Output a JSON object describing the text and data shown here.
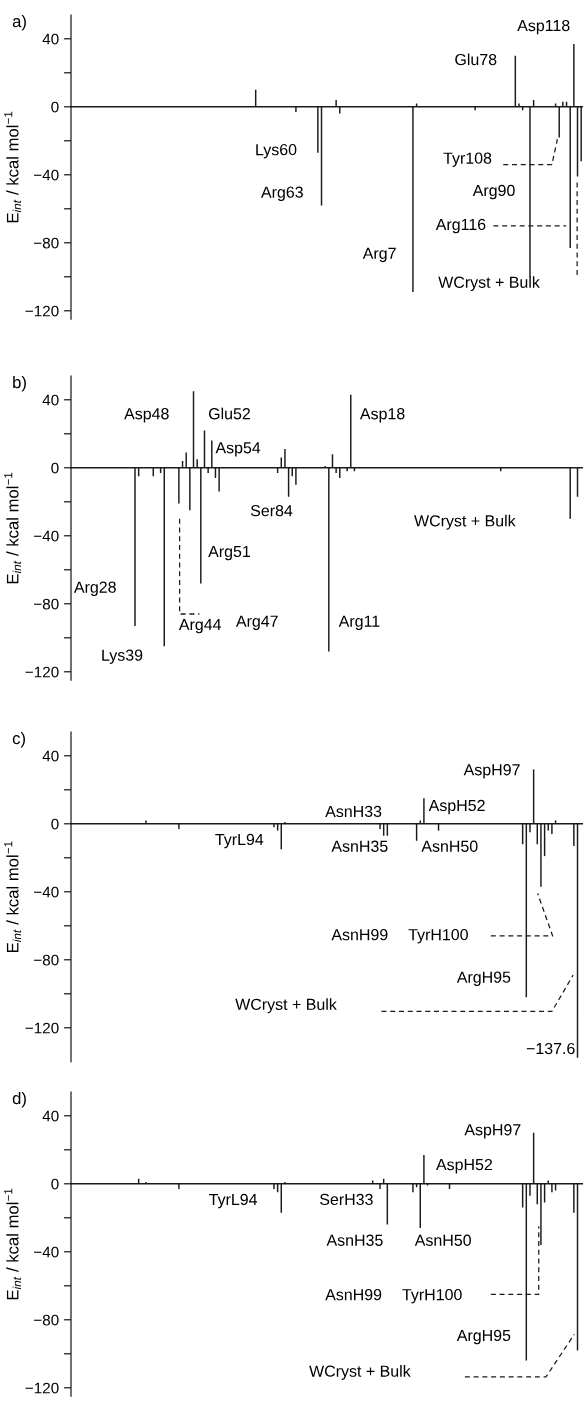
{
  "chart_data": [
    {
      "type": "bar",
      "title": "a)",
      "ylabel": "E$_{int}$ / kcal mol$^{−1}$",
      "categories": [
        null,
        null,
        null,
        null,
        null,
        null,
        null,
        null,
        null,
        null,
        null,
        null,
        null,
        null,
        null,
        null,
        null,
        null,
        null,
        null,
        null,
        null,
        null,
        null,
        null,
        null,
        null,
        null,
        null,
        null,
        null,
        null,
        null,
        null,
        null,
        null,
        null,
        null,
        null,
        null,
        null,
        null,
        null,
        null,
        null,
        null,
        null,
        null,
        null,
        null,
        null,
        null,
        null,
        null,
        null,
        null,
        null,
        null,
        null,
        null,
        null,
        null,
        null,
        null,
        null,
        null,
        null,
        null,
        null,
        null,
        null,
        null,
        null,
        null,
        null,
        null,
        null,
        null,
        null,
        null,
        null,
        null,
        null,
        null,
        null,
        null,
        null,
        null,
        null,
        null,
        null,
        null,
        null,
        null,
        null,
        null,
        null,
        null,
        null,
        null,
        null,
        null,
        null,
        null,
        null,
        null,
        null,
        null,
        null,
        null,
        null,
        null,
        null,
        null,
        null,
        null,
        null,
        null,
        null,
        null,
        null,
        null,
        null,
        null,
        null,
        null,
        null,
        null,
        null,
        null,
        null,
        null,
        null,
        null,
        null,
        null,
        null,
        null,
        null,
        null
      ],
      "color": "#1a1a1a",
      "values": [
        0,
        0,
        0,
        0,
        0,
        0,
        0,
        0,
        0,
        0,
        0,
        0,
        0,
        0,
        0,
        0,
        0,
        0,
        0,
        0,
        0,
        0,
        0,
        0,
        0,
        0,
        0,
        0,
        0,
        0,
        0,
        0,
        0,
        0,
        0,
        0,
        0,
        0,
        0,
        0,
        0,
        0,
        0,
        0,
        0,
        0,
        0,
        0,
        0,
        0,
        10,
        0,
        0,
        0,
        0,
        0,
        0,
        0,
        0,
        0,
        0,
        -3,
        0,
        0,
        0,
        0,
        0,
        -27,
        -58,
        0,
        0,
        0,
        4,
        -4,
        0,
        0,
        0,
        0,
        0,
        0,
        0,
        0,
        0,
        0,
        0,
        0,
        0,
        0,
        0,
        0,
        0,
        0,
        0,
        -109,
        2,
        0,
        0,
        0,
        0,
        0,
        0,
        0,
        0,
        0,
        0,
        0,
        0,
        0,
        0,
        0,
        -2,
        0,
        0,
        0,
        0,
        0,
        0,
        0,
        0,
        0,
        0,
        30,
        2,
        -2,
        0,
        -100,
        4,
        0,
        0,
        0,
        0,
        0,
        2,
        -18,
        3,
        3,
        -83,
        37,
        -41,
        -32
      ],
      "ylim": [
        -125,
        54
      ],
      "yticks": [
        {
          "value": 40,
          "label": "40"
        },
        {
          "value": 20,
          "label": null
        },
        {
          "value": 0,
          "label": "0"
        },
        {
          "value": -20,
          "label": null
        },
        {
          "value": -40,
          "label": "−40"
        },
        {
          "value": -60,
          "label": null
        },
        {
          "value": -80,
          "label": "−80"
        },
        {
          "value": -100,
          "label": null
        },
        {
          "value": -120,
          "label": "−120"
        }
      ],
      "tick_labels": "y",
      "ref_lines": [
        {
          "axis": "y",
          "value": 0,
          "color": "#1a1a1a"
        }
      ],
      "annotations": [
        "Lys60",
        "Arg63",
        "Arg7",
        "Glu78",
        "Asp118",
        "Tyr108",
        "Arg90",
        "Arg116",
        "WCryst + Bulk"
      ]
    },
    {
      "type": "bar",
      "title": "b)",
      "ylabel": "E$_{int}$ / kcal mol$^{−1}$",
      "categories": [
        null,
        null,
        null,
        null,
        null,
        null,
        null,
        null,
        null,
        null,
        null,
        null,
        null,
        null,
        null,
        null,
        null,
        null,
        null,
        null,
        null,
        null,
        null,
        null,
        null,
        null,
        null,
        null,
        null,
        null,
        null,
        null,
        null,
        null,
        null,
        null,
        null,
        null,
        null,
        null,
        null,
        null,
        null,
        null,
        null,
        null,
        null,
        null,
        null,
        null,
        null,
        null,
        null,
        null,
        null,
        null,
        null,
        null,
        null,
        null,
        null,
        null,
        null,
        null,
        null,
        null,
        null,
        null,
        null,
        null,
        null,
        null,
        null,
        null,
        null,
        null,
        null,
        null,
        null,
        null,
        null,
        null,
        null,
        null,
        null,
        null,
        null,
        null,
        null,
        null,
        null,
        null,
        null,
        null,
        null,
        null,
        null,
        null,
        null,
        null,
        null,
        null,
        null,
        null,
        null,
        null,
        null,
        null,
        null,
        null,
        null,
        null,
        null,
        null,
        null,
        null,
        null,
        null,
        null,
        null,
        null,
        null,
        null,
        null,
        null,
        null,
        null,
        null,
        null,
        null,
        null,
        null,
        null,
        null,
        null,
        null,
        null,
        null,
        null,
        null
      ],
      "color": "#1a1a1a",
      "values": [
        0,
        0,
        0,
        0,
        0,
        0,
        0,
        0,
        0,
        0,
        0,
        0,
        0,
        0,
        0,
        0,
        null,
        -93,
        -5,
        0,
        0,
        0,
        -5,
        0,
        -3,
        -105,
        0,
        0,
        0,
        -21,
        4,
        9,
        -25,
        45,
        5,
        -68,
        22,
        -3,
        16,
        -6,
        -14,
        0,
        0,
        0,
        0,
        0,
        0,
        0,
        0,
        0,
        0,
        null,
        0,
        0,
        0,
        0,
        -3,
        6,
        11,
        -17,
        -5,
        -10,
        0,
        0,
        0,
        0,
        0,
        0,
        0,
        1,
        -108,
        8,
        -3,
        -6,
        0,
        -2,
        43,
        -2,
        0,
        0,
        0,
        0,
        0,
        0,
        0,
        0,
        0,
        0,
        0,
        0,
        0,
        0,
        0,
        0,
        0,
        0,
        0,
        0,
        0,
        0,
        0,
        0,
        0,
        0,
        0,
        0,
        0,
        0,
        0,
        0,
        0,
        0,
        0,
        0,
        0,
        0,
        0,
        -2,
        0,
        0,
        0,
        0,
        0,
        0,
        0,
        0,
        0,
        0,
        0,
        0,
        0,
        0,
        0,
        0,
        0,
        0,
        -30,
        0,
        -17,
        0
      ],
      "ylim": [
        -125,
        54
      ],
      "yticks": [
        {
          "value": 40,
          "label": "40"
        },
        {
          "value": 20,
          "label": null
        },
        {
          "value": 0,
          "label": "0"
        },
        {
          "value": -20,
          "label": null
        },
        {
          "value": -40,
          "label": "−40"
        },
        {
          "value": -60,
          "label": null
        },
        {
          "value": -80,
          "label": "−80"
        },
        {
          "value": -100,
          "label": null
        },
        {
          "value": -120,
          "label": "−120"
        }
      ],
      "tick_labels": "y",
      "ref_lines": [
        {
          "axis": "y",
          "value": 0,
          "color": "#1a1a1a"
        }
      ],
      "annotations": [
        "Asp48",
        "Glu52",
        "Asp18",
        "Asp54",
        "Ser84",
        "WCryst + Bulk",
        "Arg51",
        "Arg28",
        "Arg44",
        "Arg47",
        "Arg11",
        "Lys39"
      ]
    },
    {
      "type": "bar",
      "title": "c)",
      "ylabel": "E$_{int}$ / kcal mol$^{−1}$",
      "categories": [
        null,
        null,
        null,
        null,
        null,
        null,
        null,
        null,
        null,
        null,
        null,
        null,
        null,
        null,
        null,
        null,
        null,
        null,
        null,
        null,
        null,
        null,
        null,
        null,
        null,
        null,
        null,
        null,
        null,
        null,
        null,
        null,
        null,
        null,
        null,
        null,
        null,
        null,
        null,
        null,
        null,
        null,
        null,
        null,
        null,
        null,
        null,
        null,
        null,
        null,
        null,
        null,
        null,
        null,
        null,
        null,
        null,
        null,
        null,
        null,
        null,
        null,
        null,
        null,
        null,
        null,
        null,
        null,
        null,
        null,
        null,
        null,
        null,
        null,
        null,
        null,
        null,
        null,
        null,
        null,
        null,
        null,
        null,
        null,
        null,
        null,
        null,
        null,
        null,
        null,
        null,
        null,
        null,
        null,
        null,
        null,
        null,
        null,
        null,
        null,
        null,
        null,
        null,
        null,
        null,
        null,
        null,
        null,
        null,
        null,
        null,
        null,
        null,
        null,
        null,
        null,
        null,
        null,
        null,
        null,
        null,
        null,
        null,
        null,
        null,
        null,
        null,
        null,
        null,
        null,
        null,
        null,
        null,
        null,
        null,
        null,
        null,
        null,
        null,
        null
      ],
      "color": "#1a1a1a",
      "values": [
        0,
        0,
        0,
        0,
        0,
        0,
        0,
        0,
        0,
        0,
        0,
        0,
        0,
        0,
        0,
        0,
        0,
        0,
        null,
        0,
        2,
        0,
        0,
        0,
        0,
        0,
        0,
        0,
        0,
        -3,
        0,
        0,
        0,
        0,
        0,
        0,
        0,
        0,
        0,
        0,
        0,
        0,
        0,
        0,
        0,
        0,
        0,
        0,
        0,
        0,
        0,
        0,
        0,
        0,
        0,
        -2,
        -4,
        -15,
        1,
        0,
        0,
        0,
        0,
        0,
        0,
        0,
        0,
        0,
        0,
        0,
        0,
        0,
        0,
        0,
        0,
        0,
        0,
        0,
        0,
        0,
        0,
        0,
        null,
        0,
        -3,
        -7,
        -7,
        0,
        0,
        0,
        0,
        0,
        0,
        0,
        -10,
        2,
        15,
        null,
        0,
        0,
        -4,
        0,
        0,
        0,
        0,
        0,
        0,
        0,
        0,
        0,
        0,
        0,
        0,
        0,
        0,
        0,
        0,
        0,
        0,
        0,
        0,
        0,
        0,
        -12,
        -102,
        -5,
        32,
        -12,
        -37,
        -19,
        -4,
        -6,
        2,
        0,
        0,
        0,
        0,
        -13,
        -137.6,
        0
      ],
      "ylim": [
        -140,
        54
      ],
      "yticks": [
        {
          "value": 40,
          "label": "40"
        },
        {
          "value": 20,
          "label": null
        },
        {
          "value": 0,
          "label": "0"
        },
        {
          "value": -20,
          "label": null
        },
        {
          "value": -40,
          "label": "−40"
        },
        {
          "value": -60,
          "label": null
        },
        {
          "value": -80,
          "label": "−80"
        },
        {
          "value": -100,
          "label": null
        },
        {
          "value": -120,
          "label": "−120"
        }
      ],
      "tick_labels": "y",
      "ref_lines": [
        {
          "axis": "y",
          "value": 0,
          "color": "#1a1a1a"
        }
      ],
      "annotations": [
        "TyrL94",
        "AsnH33",
        "AsnH35",
        "AsnH50",
        "AspH52",
        "AspH97",
        "AsnH99",
        "TyrH100",
        "ArgH95",
        "WCryst + Bulk",
        "−137.6"
      ]
    },
    {
      "type": "bar",
      "title": "d)",
      "ylabel": "E$_{int}$ / kcal mol$^{−1}$",
      "categories": [
        null,
        null,
        null,
        null,
        null,
        null,
        null,
        null,
        null,
        null,
        null,
        null,
        null,
        null,
        null,
        null,
        null,
        null,
        null,
        null,
        null,
        null,
        null,
        null,
        null,
        null,
        null,
        null,
        null,
        null,
        null,
        null,
        null,
        null,
        null,
        null,
        null,
        null,
        null,
        null,
        null,
        null,
        null,
        null,
        null,
        null,
        null,
        null,
        null,
        null,
        null,
        null,
        null,
        null,
        null,
        null,
        null,
        null,
        null,
        null,
        null,
        null,
        null,
        null,
        null,
        null,
        null,
        null,
        null,
        null,
        null,
        null,
        null,
        null,
        null,
        null,
        null,
        null,
        null,
        null,
        null,
        null,
        null,
        null,
        null,
        null,
        null,
        null,
        null,
        null,
        null,
        null,
        null,
        null,
        null,
        null,
        null,
        null,
        null,
        null,
        null,
        null,
        null,
        null,
        null,
        null,
        null,
        null,
        null,
        null,
        null,
        null,
        null,
        null,
        null,
        null,
        null,
        null,
        null,
        null,
        null,
        null,
        null,
        null,
        null,
        null,
        null,
        null,
        null,
        null,
        null,
        null,
        null,
        null,
        null,
        null,
        null,
        null,
        null,
        null
      ],
      "color": "#1a1a1a",
      "values": [
        0,
        0,
        0,
        0,
        0,
        0,
        0,
        0,
        0,
        0,
        0,
        0,
        0,
        0,
        0,
        0,
        0,
        0,
        3,
        0,
        1,
        0,
        0,
        0,
        0,
        0,
        0,
        0,
        0,
        -3,
        0,
        0,
        0,
        0,
        0,
        0,
        0,
        0,
        0,
        0,
        0,
        0,
        0,
        0,
        0,
        0,
        0,
        0,
        0,
        0,
        0,
        0,
        0,
        0,
        0,
        -3,
        -5,
        -17,
        1,
        0,
        0,
        0,
        0,
        0,
        0,
        0,
        0,
        0,
        0,
        0,
        0,
        0,
        0,
        0,
        0,
        0,
        0,
        0,
        0,
        0,
        0,
        0,
        2,
        0,
        -3,
        3,
        -24,
        0,
        0,
        0,
        0,
        0,
        0,
        -5,
        -2,
        -26,
        17,
        -1,
        0,
        0,
        0,
        0,
        0,
        -3,
        0,
        0,
        0,
        0,
        0,
        0,
        0,
        0,
        0,
        0,
        0,
        0,
        0,
        0,
        0,
        0,
        0,
        0,
        0,
        -14,
        -104,
        -7,
        30,
        -12,
        -36,
        -11,
        2,
        -5,
        -4,
        0,
        0,
        0,
        0,
        -17,
        -98,
        0
      ],
      "ylim": [
        -125,
        54
      ],
      "yticks": [
        {
          "value": 40,
          "label": "40"
        },
        {
          "value": 20,
          "label": null
        },
        {
          "value": 0,
          "label": "0"
        },
        {
          "value": -20,
          "label": null
        },
        {
          "value": -40,
          "label": "−40"
        },
        {
          "value": -60,
          "label": null
        },
        {
          "value": -80,
          "label": "−80"
        },
        {
          "value": -100,
          "label": null
        },
        {
          "value": -120,
          "label": "−120"
        }
      ],
      "tick_labels": "y",
      "ref_lines": [
        {
          "axis": "y",
          "value": 0,
          "color": "#1a1a1a"
        }
      ],
      "annotations": [
        "TyrL94",
        "SerH33",
        "AsnH35",
        "AsnH50",
        "AspH52",
        "AspH97",
        "AsnH99",
        "TyrH100",
        "ArgH95",
        "WCryst + Bulk"
      ]
    }
  ]
}
